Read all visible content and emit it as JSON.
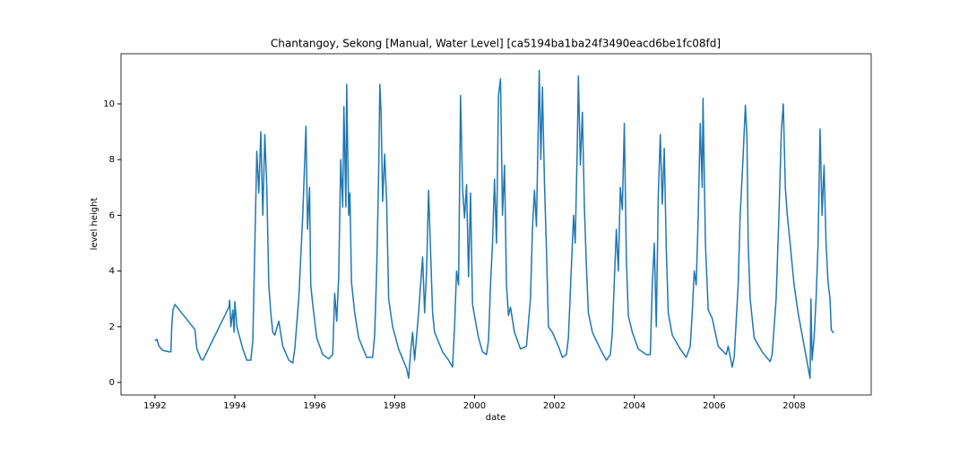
{
  "chart_data": {
    "type": "line",
    "title": "Chantangoy, Sekong [Manual, Water Level] [ca5194ba1ba24f3490eacd6be1fc08fd]",
    "x_label": "date",
    "y_label": "level height",
    "color": "#1f77b4",
    "xlim": [
      1991.15,
      2009.93
    ],
    "ylim": [
      -0.45,
      11.8
    ],
    "xticks": [
      1992,
      1994,
      1996,
      1998,
      2000,
      2002,
      2004,
      2006,
      2008
    ],
    "yticks": [
      0,
      2,
      4,
      6,
      8,
      10
    ],
    "x": [
      1992.0,
      1992.05,
      1992.1,
      1992.2,
      1992.35,
      1992.4,
      1992.42,
      1992.45,
      1992.5,
      1993.0,
      1993.05,
      1993.15,
      1993.2,
      1993.85,
      1993.87,
      1993.9,
      1993.95,
      1993.98,
      1994.0,
      1994.05,
      1994.2,
      1994.3,
      1994.4,
      1994.45,
      1994.5,
      1994.55,
      1994.6,
      1994.65,
      1994.7,
      1994.75,
      1994.8,
      1994.85,
      1994.9,
      1994.95,
      1995.0,
      1995.1,
      1995.2,
      1995.35,
      1995.45,
      1995.5,
      1995.6,
      1995.7,
      1995.75,
      1995.78,
      1995.82,
      1995.87,
      1995.9,
      1995.95,
      1996.05,
      1996.2,
      1996.35,
      1996.45,
      1996.5,
      1996.55,
      1996.6,
      1996.65,
      1996.7,
      1996.73,
      1996.78,
      1996.8,
      1996.85,
      1996.88,
      1996.92,
      1997.0,
      1997.1,
      1997.3,
      1997.45,
      1997.5,
      1997.55,
      1997.6,
      1997.63,
      1997.66,
      1997.7,
      1997.75,
      1997.8,
      1997.85,
      1997.95,
      1998.1,
      1998.3,
      1998.35,
      1998.4,
      1998.45,
      1998.5,
      1998.6,
      1998.7,
      1998.75,
      1998.8,
      1998.85,
      1998.9,
      1998.95,
      1999.0,
      1999.2,
      1999.35,
      1999.45,
      1999.5,
      1999.55,
      1999.6,
      1999.65,
      1999.7,
      1999.75,
      1999.8,
      1999.85,
      1999.9,
      1999.95,
      2000.1,
      2000.2,
      2000.3,
      2000.35,
      2000.4,
      2000.45,
      2000.5,
      2000.55,
      2000.6,
      2000.65,
      2000.7,
      2000.75,
      2000.8,
      2000.85,
      2000.9,
      2001.0,
      2001.15,
      2001.3,
      2001.4,
      2001.45,
      2001.5,
      2001.55,
      2001.62,
      2001.66,
      2001.7,
      2001.75,
      2001.8,
      2001.85,
      2001.95,
      2002.1,
      2002.2,
      2002.3,
      2002.35,
      2002.42,
      2002.48,
      2002.52,
      2002.57,
      2002.6,
      2002.65,
      2002.7,
      2002.75,
      2002.8,
      2002.85,
      2002.95,
      2003.15,
      2003.3,
      2003.4,
      2003.45,
      2003.55,
      2003.6,
      2003.65,
      2003.7,
      2003.75,
      2003.8,
      2003.85,
      2003.95,
      2004.1,
      2004.3,
      2004.4,
      2004.45,
      2004.5,
      2004.55,
      2004.6,
      2004.65,
      2004.7,
      2004.75,
      2004.8,
      2004.85,
      2004.95,
      2005.15,
      2005.3,
      2005.4,
      2005.45,
      2005.5,
      2005.55,
      2005.6,
      2005.65,
      2005.7,
      2005.72,
      2005.78,
      2005.85,
      2005.95,
      2006.1,
      2006.3,
      2006.35,
      2006.45,
      2006.5,
      2006.6,
      2006.65,
      2006.72,
      2006.78,
      2006.82,
      2006.85,
      2006.9,
      2007.0,
      2007.2,
      2007.4,
      2007.45,
      2007.55,
      2007.62,
      2007.68,
      2007.73,
      2007.78,
      2007.83,
      2007.9,
      2008.0,
      2008.1,
      2008.4,
      2008.42,
      2008.45,
      2008.5,
      2008.55,
      2008.6,
      2008.65,
      2008.7,
      2008.75,
      2008.8,
      2008.85,
      2008.9,
      2008.93,
      2008.97,
      2009.0
    ],
    "values": [
      1.5,
      1.55,
      1.3,
      1.15,
      1.1,
      1.1,
      2.0,
      2.6,
      2.8,
      1.9,
      1.2,
      0.85,
      0.8,
      2.7,
      2.95,
      2.0,
      2.6,
      1.8,
      2.9,
      2.0,
      1.2,
      0.8,
      0.8,
      1.5,
      4.9,
      8.3,
      6.8,
      9.0,
      6.0,
      8.9,
      7.0,
      3.5,
      2.5,
      1.8,
      1.7,
      2.2,
      1.3,
      0.8,
      0.7,
      1.2,
      3.0,
      6.0,
      8.0,
      9.2,
      5.5,
      7.0,
      3.5,
      2.8,
      1.6,
      1.0,
      0.85,
      1.0,
      3.2,
      2.2,
      3.8,
      8.0,
      6.3,
      9.9,
      6.3,
      10.7,
      6.0,
      6.8,
      3.6,
      2.5,
      1.6,
      0.9,
      0.9,
      1.7,
      4.0,
      7.5,
      10.7,
      9.7,
      6.5,
      8.2,
      6.5,
      3.0,
      2.0,
      1.2,
      0.5,
      0.15,
      1.1,
      1.8,
      0.8,
      2.5,
      4.5,
      2.5,
      4.0,
      6.9,
      4.7,
      2.5,
      1.8,
      1.1,
      0.8,
      0.55,
      2.0,
      4.0,
      3.5,
      10.3,
      7.0,
      5.9,
      7.1,
      3.8,
      6.8,
      2.8,
      1.6,
      1.1,
      1.0,
      1.5,
      3.5,
      5.0,
      7.3,
      5.0,
      10.3,
      10.9,
      6.0,
      7.8,
      3.5,
      2.4,
      2.7,
      1.8,
      1.2,
      1.3,
      3.0,
      5.5,
      6.9,
      5.6,
      11.2,
      8.0,
      10.6,
      7.2,
      4.8,
      2.0,
      1.8,
      1.3,
      0.9,
      1.0,
      1.6,
      4.0,
      6.0,
      5.0,
      8.3,
      11.0,
      7.8,
      9.7,
      6.3,
      4.2,
      2.5,
      1.8,
      1.2,
      0.8,
      1.0,
      1.8,
      5.5,
      4.0,
      7.0,
      6.2,
      9.3,
      4.5,
      2.4,
      1.8,
      1.2,
      1.0,
      1.0,
      3.5,
      5.0,
      2.0,
      6.7,
      8.9,
      6.4,
      8.4,
      4.8,
      2.5,
      1.7,
      1.2,
      0.9,
      1.3,
      2.5,
      4.0,
      3.5,
      6.0,
      9.3,
      7.0,
      10.2,
      5.0,
      2.6,
      2.3,
      1.3,
      1.0,
      1.3,
      0.55,
      0.9,
      3.5,
      6.0,
      8.0,
      9.95,
      8.8,
      5.0,
      3.0,
      1.6,
      1.1,
      0.75,
      1.0,
      3.0,
      6.0,
      9.0,
      10.0,
      7.0,
      6.0,
      5.0,
      3.5,
      2.5,
      0.15,
      3.0,
      0.8,
      1.6,
      3.0,
      5.0,
      9.1,
      6.0,
      7.8,
      5.0,
      3.6,
      3.0,
      1.9,
      1.8,
      1.8
    ]
  }
}
